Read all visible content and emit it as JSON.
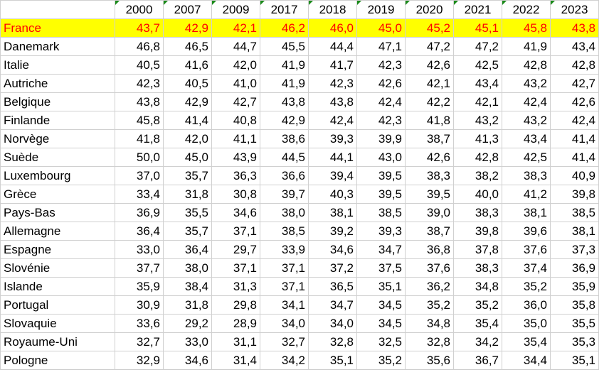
{
  "years": [
    "2000",
    "2007",
    "2009",
    "2017",
    "2018",
    "2019",
    "2020",
    "2021",
    "2022",
    "2023"
  ],
  "rows": [
    {
      "country": "France",
      "values": [
        "43,7",
        "42,9",
        "42,1",
        "46,2",
        "46,0",
        "45,0",
        "45,2",
        "45,1",
        "45,8",
        "43,8"
      ]
    },
    {
      "country": "Danemark",
      "values": [
        "46,8",
        "46,5",
        "44,7",
        "45,5",
        "44,4",
        "47,1",
        "47,2",
        "47,2",
        "41,9",
        "43,4"
      ]
    },
    {
      "country": "Italie",
      "values": [
        "40,5",
        "41,6",
        "42,0",
        "41,9",
        "41,7",
        "42,3",
        "42,6",
        "42,5",
        "42,8",
        "42,8"
      ]
    },
    {
      "country": "Autriche",
      "values": [
        "42,3",
        "40,5",
        "41,0",
        "41,9",
        "42,3",
        "42,6",
        "42,1",
        "43,4",
        "43,2",
        "42,7"
      ]
    },
    {
      "country": "Belgique",
      "values": [
        "43,8",
        "42,9",
        "42,7",
        "43,8",
        "43,8",
        "42,4",
        "42,2",
        "42,1",
        "42,4",
        "42,6"
      ]
    },
    {
      "country": "Finlande",
      "values": [
        "45,8",
        "41,4",
        "40,8",
        "42,9",
        "42,4",
        "42,3",
        "41,8",
        "43,2",
        "43,2",
        "42,4"
      ]
    },
    {
      "country": "Norvège",
      "values": [
        "41,8",
        "42,0",
        "41,1",
        "38,6",
        "39,3",
        "39,9",
        "38,7",
        "41,3",
        "43,4",
        "41,4"
      ]
    },
    {
      "country": "Suède",
      "values": [
        "50,0",
        "45,0",
        "43,9",
        "44,5",
        "44,1",
        "43,0",
        "42,6",
        "42,8",
        "42,5",
        "41,4"
      ]
    },
    {
      "country": "Luxembourg",
      "values": [
        "37,0",
        "35,7",
        "36,3",
        "36,6",
        "39,4",
        "39,5",
        "38,3",
        "38,2",
        "38,3",
        "40,9"
      ]
    },
    {
      "country": "Grèce",
      "values": [
        "33,4",
        "31,8",
        "30,8",
        "39,7",
        "40,3",
        "39,5",
        "39,5",
        "40,0",
        "41,2",
        "39,8"
      ]
    },
    {
      "country": "Pays-Bas",
      "values": [
        "36,9",
        "35,5",
        "34,6",
        "38,0",
        "38,1",
        "38,5",
        "39,0",
        "38,3",
        "38,1",
        "38,5"
      ]
    },
    {
      "country": "Allemagne",
      "values": [
        "36,4",
        "35,7",
        "37,1",
        "38,5",
        "39,2",
        "39,3",
        "38,7",
        "39,8",
        "39,6",
        "38,1"
      ]
    },
    {
      "country": "Espagne",
      "values": [
        "33,0",
        "36,4",
        "29,7",
        "33,9",
        "34,6",
        "34,7",
        "36,8",
        "37,8",
        "37,6",
        "37,3"
      ]
    },
    {
      "country": "Slovénie",
      "values": [
        "37,7",
        "38,0",
        "37,1",
        "37,1",
        "37,2",
        "37,5",
        "37,6",
        "38,3",
        "37,4",
        "36,9"
      ]
    },
    {
      "country": "Islande",
      "values": [
        "35,9",
        "38,4",
        "31,3",
        "37,1",
        "36,5",
        "35,1",
        "36,2",
        "34,8",
        "35,2",
        "35,9"
      ]
    },
    {
      "country": "Portugal",
      "values": [
        "30,9",
        "31,8",
        "29,8",
        "34,1",
        "34,7",
        "34,5",
        "35,2",
        "35,2",
        "36,0",
        "35,8"
      ]
    },
    {
      "country": "Slovaquie",
      "values": [
        "33,6",
        "29,2",
        "28,9",
        "34,0",
        "34,0",
        "34,5",
        "34,8",
        "35,4",
        "35,0",
        "35,5"
      ]
    },
    {
      "country": "Royaume-Uni",
      "values": [
        "32,7",
        "33,0",
        "31,1",
        "32,7",
        "32,8",
        "32,5",
        "32,8",
        "34,2",
        "35,4",
        "35,3"
      ]
    },
    {
      "country": "Pologne",
      "values": [
        "32,9",
        "34,6",
        "31,4",
        "34,2",
        "35,1",
        "35,2",
        "35,6",
        "36,7",
        "34,4",
        "35,1"
      ]
    }
  ],
  "highlight": {
    "row_background": "#ffff00",
    "value_color": "#ff0000",
    "country_color": "#ff0000"
  },
  "header_marker_color": "#1a8a1a"
}
